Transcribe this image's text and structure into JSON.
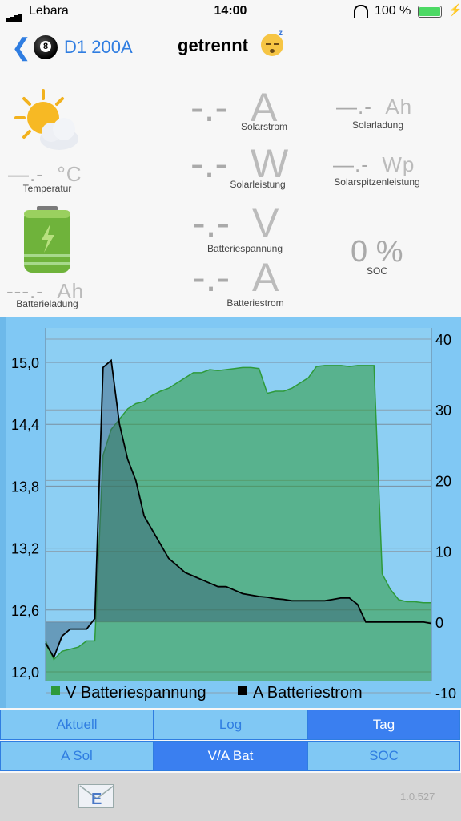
{
  "status": {
    "carrier": "Lebara",
    "time": "14:00",
    "battery": "100 %"
  },
  "nav": {
    "device": "D1 200A",
    "title": "getrennt"
  },
  "panel": {
    "solarstrom": {
      "value": "-.-",
      "unit": "A",
      "label": "Solarstrom"
    },
    "solarladung": {
      "value": "—.-",
      "unit": "Ah",
      "label": "Solarladung"
    },
    "solarleistung": {
      "value": "-.-",
      "unit": "W",
      "label": "Solarleistung"
    },
    "solarspitzen": {
      "value": "—.-",
      "unit": "Wp",
      "label": "Solarspitzenleistung"
    },
    "temperatur": {
      "value": "—.-",
      "unit": "°C",
      "label": "Temperatur"
    },
    "batteriespannung": {
      "value": "-.-",
      "unit": "V",
      "label": "Batteriespannung"
    },
    "soc": {
      "value": "0 %",
      "label": "SOC"
    },
    "batteriestrom": {
      "value": "-.-",
      "unit": "A",
      "label": "Batteriestrom"
    },
    "batterieladung": {
      "value": "---.-",
      "unit": "Ah",
      "label": "Batterieladung"
    }
  },
  "chart_data": {
    "type": "area",
    "y_left": {
      "ticks": [
        "15,0",
        "14,4",
        "13,8",
        "13,2",
        "12,6",
        "12,0"
      ],
      "range": [
        12.0,
        15.0
      ]
    },
    "y_right": {
      "ticks": [
        "40",
        "30",
        "20",
        "10",
        "0",
        "-10"
      ],
      "range": [
        -10,
        40
      ]
    },
    "legend": [
      "V Batteriespannung",
      "A Batteriestrom"
    ],
    "colors": {
      "voltage": "#2e9a3a",
      "current": "#000000"
    },
    "series": [
      {
        "name": "V Batteriespannung",
        "axis": "left",
        "values": [
          12.3,
          12.12,
          12.2,
          12.22,
          12.24,
          12.3,
          12.3,
          14.1,
          14.35,
          14.45,
          14.55,
          14.6,
          14.62,
          14.68,
          14.72,
          14.75,
          14.8,
          14.85,
          14.9,
          14.9,
          14.93,
          14.92,
          14.93,
          14.94,
          14.95,
          14.95,
          14.94,
          14.7,
          14.72,
          14.72,
          14.75,
          14.8,
          14.85,
          14.96,
          14.97,
          14.97,
          14.97,
          14.96,
          14.97,
          14.97,
          14.97,
          12.95,
          12.8,
          12.7,
          12.68,
          12.68,
          12.67,
          12.67
        ]
      },
      {
        "name": "A Batteriestrom",
        "axis": "right",
        "values": [
          -3,
          -5,
          -2,
          -1,
          -1,
          -1,
          0.5,
          36,
          37,
          28,
          23,
          20,
          15,
          13,
          11,
          9,
          8,
          7,
          6.5,
          6,
          5.5,
          5,
          5,
          4.5,
          4,
          3.8,
          3.6,
          3.5,
          3.3,
          3.2,
          3,
          3,
          3,
          3,
          3,
          3.2,
          3.4,
          3.4,
          2.5,
          0,
          0,
          0,
          0,
          0,
          0,
          0,
          0,
          -0.2
        ]
      }
    ]
  },
  "tabs_row1": [
    {
      "label": "Aktuell",
      "active": false
    },
    {
      "label": "Log",
      "active": false
    },
    {
      "label": "Tag",
      "active": true
    }
  ],
  "tabs_row2": [
    {
      "label": "A Sol",
      "active": false
    },
    {
      "label": "V/A Bat",
      "active": true
    },
    {
      "label": "SOC",
      "active": false
    }
  ],
  "footer": {
    "version": "1.0.527",
    "icon": "email-icon"
  }
}
